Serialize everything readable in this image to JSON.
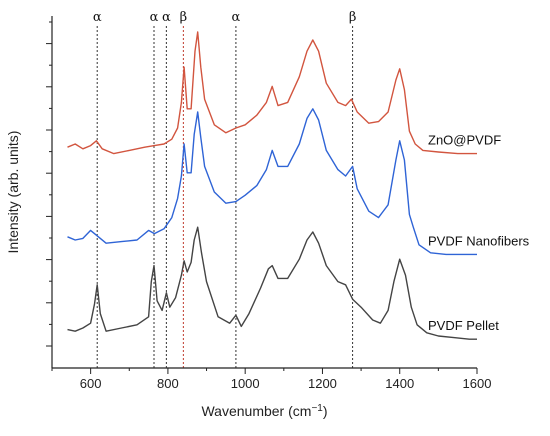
{
  "chart_data": {
    "type": "line",
    "xlabel": "Wavenumber (cm",
    "xlabel_sup": "−1",
    "xlabel_close": ")",
    "ylabel": "Intensity (arb. units)",
    "xlim": [
      500,
      1600
    ],
    "x_ticks": [
      600,
      800,
      1000,
      1200,
      1400,
      1600
    ],
    "y_ticks_labeled": false,
    "markers": [
      {
        "label": "α",
        "x": 617,
        "color": "#333333"
      },
      {
        "label": "α",
        "x": 764,
        "color": "#333333"
      },
      {
        "label": "α",
        "x": 796,
        "color": "#333333"
      },
      {
        "label": "β",
        "x": 840,
        "color": "#c0392b"
      },
      {
        "label": "α",
        "x": 976,
        "color": "#333333"
      },
      {
        "label": "β",
        "x": 1278,
        "color": "#333333"
      }
    ],
    "series": [
      {
        "name": "ZnO@PVDF",
        "color": "#d2553f",
        "points": [
          [
            540,
            9.5
          ],
          [
            560,
            9.6
          ],
          [
            580,
            9.45
          ],
          [
            600,
            9.55
          ],
          [
            615,
            9.7
          ],
          [
            630,
            9.45
          ],
          [
            660,
            9.3
          ],
          [
            700,
            9.4
          ],
          [
            740,
            9.5
          ],
          [
            765,
            9.55
          ],
          [
            790,
            9.6
          ],
          [
            810,
            9.75
          ],
          [
            825,
            10.1
          ],
          [
            835,
            10.9
          ],
          [
            842,
            12.0
          ],
          [
            850,
            10.7
          ],
          [
            860,
            10.7
          ],
          [
            870,
            12.5
          ],
          [
            877,
            13.1
          ],
          [
            885,
            12.0
          ],
          [
            895,
            11.0
          ],
          [
            920,
            10.2
          ],
          [
            950,
            9.95
          ],
          [
            976,
            10.1
          ],
          [
            1000,
            10.2
          ],
          [
            1030,
            10.5
          ],
          [
            1055,
            10.9
          ],
          [
            1070,
            11.4
          ],
          [
            1085,
            10.8
          ],
          [
            1110,
            10.9
          ],
          [
            1140,
            11.7
          ],
          [
            1160,
            12.5
          ],
          [
            1175,
            12.85
          ],
          [
            1190,
            12.5
          ],
          [
            1210,
            11.5
          ],
          [
            1240,
            10.9
          ],
          [
            1260,
            10.8
          ],
          [
            1275,
            11.0
          ],
          [
            1290,
            10.6
          ],
          [
            1320,
            10.25
          ],
          [
            1345,
            10.3
          ],
          [
            1370,
            10.6
          ],
          [
            1390,
            11.6
          ],
          [
            1400,
            11.95
          ],
          [
            1412,
            11.3
          ],
          [
            1425,
            10.0
          ],
          [
            1440,
            9.6
          ],
          [
            1460,
            9.4
          ],
          [
            1500,
            9.35
          ],
          [
            1550,
            9.3
          ],
          [
            1600,
            9.3
          ]
        ]
      },
      {
        "name": "PVDF Nanofibers",
        "color": "#2f64d6",
        "points": [
          [
            540,
            6.7
          ],
          [
            560,
            6.6
          ],
          [
            580,
            6.65
          ],
          [
            600,
            6.9
          ],
          [
            615,
            6.75
          ],
          [
            640,
            6.5
          ],
          [
            680,
            6.55
          ],
          [
            720,
            6.6
          ],
          [
            750,
            6.9
          ],
          [
            765,
            6.8
          ],
          [
            790,
            6.95
          ],
          [
            810,
            7.3
          ],
          [
            825,
            7.9
          ],
          [
            835,
            8.6
          ],
          [
            842,
            9.6
          ],
          [
            850,
            8.7
          ],
          [
            860,
            8.7
          ],
          [
            868,
            9.9
          ],
          [
            877,
            10.6
          ],
          [
            885,
            9.8
          ],
          [
            895,
            8.9
          ],
          [
            920,
            8.1
          ],
          [
            950,
            7.75
          ],
          [
            976,
            7.8
          ],
          [
            1000,
            8.0
          ],
          [
            1030,
            8.3
          ],
          [
            1055,
            8.8
          ],
          [
            1070,
            9.4
          ],
          [
            1085,
            8.9
          ],
          [
            1110,
            8.9
          ],
          [
            1140,
            9.6
          ],
          [
            1160,
            10.4
          ],
          [
            1175,
            10.7
          ],
          [
            1190,
            10.35
          ],
          [
            1210,
            9.4
          ],
          [
            1240,
            8.8
          ],
          [
            1260,
            8.6
          ],
          [
            1278,
            8.9
          ],
          [
            1290,
            8.2
          ],
          [
            1320,
            7.5
          ],
          [
            1345,
            7.3
          ],
          [
            1370,
            7.7
          ],
          [
            1390,
            9.1
          ],
          [
            1400,
            9.7
          ],
          [
            1412,
            9.1
          ],
          [
            1425,
            7.4
          ],
          [
            1435,
            7.0
          ],
          [
            1450,
            6.45
          ],
          [
            1480,
            6.2
          ],
          [
            1520,
            6.15
          ],
          [
            1560,
            6.15
          ],
          [
            1600,
            6.15
          ]
        ]
      },
      {
        "name": "PVDF Pellet",
        "color": "#444444",
        "points": [
          [
            540,
            3.8
          ],
          [
            560,
            3.75
          ],
          [
            580,
            3.85
          ],
          [
            600,
            4.0
          ],
          [
            610,
            4.6
          ],
          [
            617,
            5.2
          ],
          [
            625,
            4.3
          ],
          [
            640,
            3.75
          ],
          [
            680,
            3.85
          ],
          [
            720,
            3.95
          ],
          [
            750,
            4.2
          ],
          [
            757,
            5.3
          ],
          [
            764,
            5.8
          ],
          [
            772,
            4.7
          ],
          [
            785,
            4.4
          ],
          [
            796,
            4.95
          ],
          [
            805,
            4.5
          ],
          [
            820,
            4.8
          ],
          [
            835,
            5.5
          ],
          [
            842,
            5.95
          ],
          [
            850,
            5.6
          ],
          [
            860,
            5.9
          ],
          [
            868,
            6.6
          ],
          [
            877,
            7.0
          ],
          [
            887,
            6.2
          ],
          [
            900,
            5.3
          ],
          [
            930,
            4.2
          ],
          [
            960,
            4.0
          ],
          [
            976,
            4.25
          ],
          [
            990,
            3.9
          ],
          [
            1010,
            4.3
          ],
          [
            1040,
            5.1
          ],
          [
            1060,
            5.7
          ],
          [
            1070,
            5.8
          ],
          [
            1085,
            5.4
          ],
          [
            1110,
            5.4
          ],
          [
            1140,
            6.0
          ],
          [
            1160,
            6.6
          ],
          [
            1175,
            6.85
          ],
          [
            1190,
            6.5
          ],
          [
            1210,
            5.8
          ],
          [
            1240,
            5.3
          ],
          [
            1260,
            5.2
          ],
          [
            1278,
            4.75
          ],
          [
            1300,
            4.5
          ],
          [
            1330,
            4.1
          ],
          [
            1350,
            4.0
          ],
          [
            1370,
            4.4
          ],
          [
            1385,
            5.3
          ],
          [
            1400,
            6.0
          ],
          [
            1415,
            5.5
          ],
          [
            1430,
            4.5
          ],
          [
            1445,
            3.95
          ],
          [
            1470,
            3.7
          ],
          [
            1500,
            3.6
          ],
          [
            1540,
            3.55
          ],
          [
            1580,
            3.5
          ],
          [
            1600,
            3.5
          ]
        ]
      }
    ]
  }
}
